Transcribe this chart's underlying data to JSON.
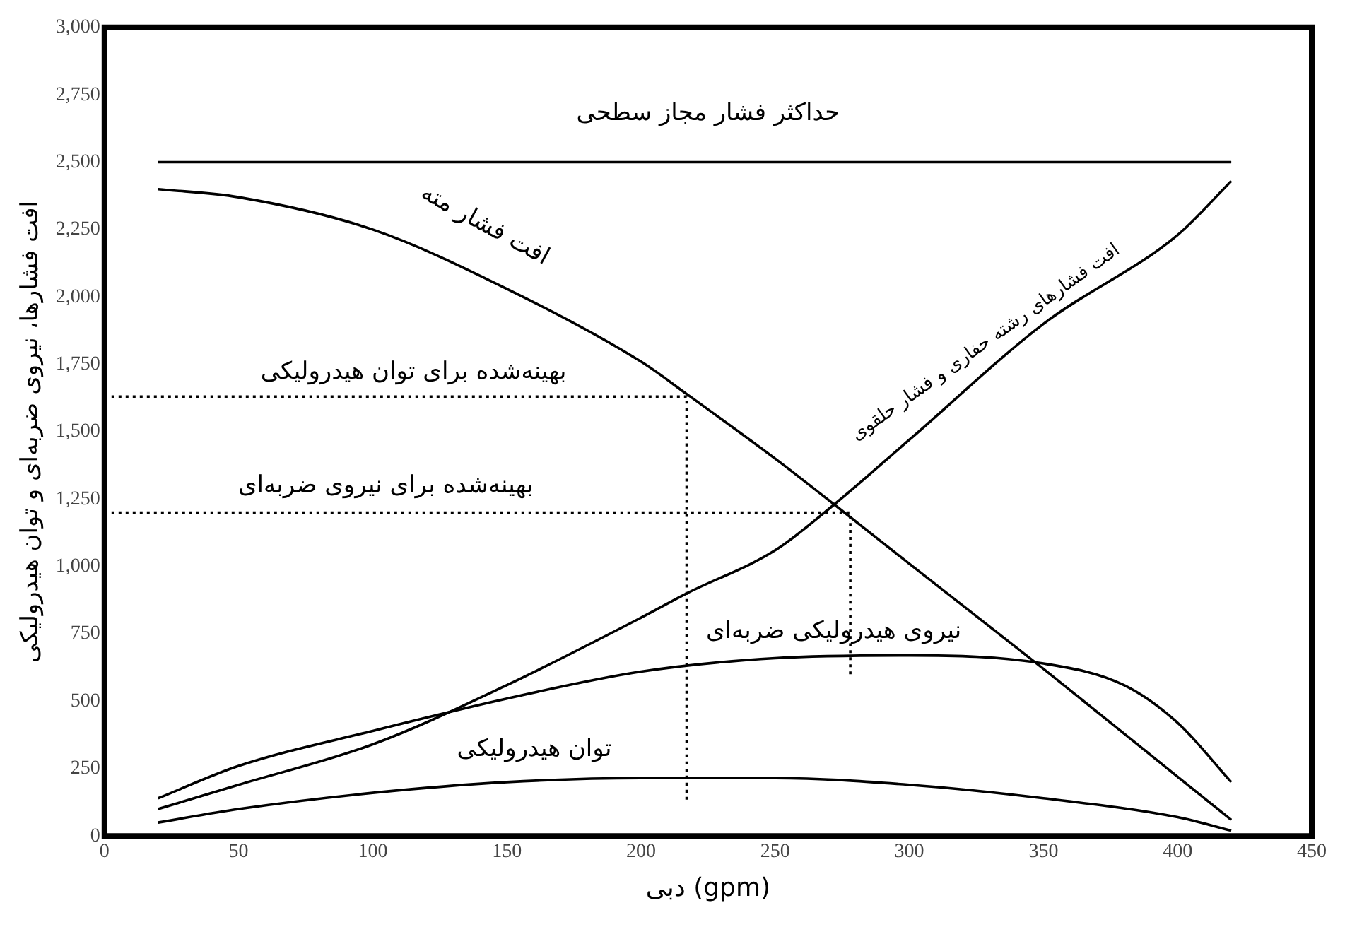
{
  "chart_data": {
    "type": "line",
    "xlabel": "دبی (gpm)",
    "ylabel": "افت فشارها، نیروی ضربه‌ای و توان هیدرولیکی",
    "xlim": [
      0,
      450
    ],
    "xticks": [
      0,
      50,
      100,
      150,
      200,
      250,
      300,
      350,
      400,
      450
    ],
    "ylim": [
      0,
      3000
    ],
    "yticks": [
      0,
      250,
      500,
      750,
      {
        "value": 1000,
        "label": "1,000"
      },
      {
        "value": 1250,
        "label": "1,250"
      },
      {
        "value": 1500,
        "label": "1,500"
      },
      {
        "value": 1750,
        "label": "1,750"
      },
      {
        "value": 2000,
        "label": "2,000"
      },
      {
        "value": 2250,
        "label": "2,250"
      },
      {
        "value": 2500,
        "label": "2,500"
      },
      {
        "value": 2750,
        "label": "2,750"
      },
      {
        "value": 3000,
        "label": "3,000"
      }
    ],
    "grid": false,
    "legend": false,
    "marker": "none",
    "line_style": "solid",
    "series": [
      {
        "color": "#000000",
        "x": [
          20,
          420
        ],
        "values": [
          2500,
          2500
        ]
      },
      {
        "color": "#000000",
        "x": [
          20,
          50,
          100,
          150,
          200,
          217,
          250,
          272,
          300,
          350,
          400,
          420
        ],
        "values": [
          2400,
          2370,
          2250,
          2030,
          1760,
          1640,
          1400,
          1230,
          1010,
          620,
          220,
          60
        ]
      },
      {
        "color": "#000000",
        "x": [
          20,
          50,
          100,
          150,
          200,
          217,
          250,
          272,
          300,
          350,
          400,
          420
        ],
        "values": [
          100,
          190,
          340,
          560,
          810,
          900,
          1060,
          1230,
          1470,
          1900,
          2230,
          2430
        ]
      },
      {
        "color": "#000000",
        "x": [
          20,
          50,
          100,
          150,
          200,
          250,
          300,
          350,
          380,
          400,
          420
        ],
        "values": [
          140,
          260,
          390,
          510,
          610,
          660,
          670,
          640,
          560,
          420,
          200
        ]
      },
      {
        "color": "#000000",
        "x": [
          20,
          50,
          100,
          150,
          200,
          250,
          300,
          350,
          400,
          420
        ],
        "values": [
          50,
          100,
          160,
          200,
          215,
          215,
          190,
          140,
          70,
          20
        ]
      },
      {
        "color": "#000000",
        "line_style": "dotted",
        "x": [
          0,
          217,
          217
        ],
        "values": [
          1630,
          1630,
          130
        ]
      },
      {
        "color": "#000000",
        "line_style": "dotted",
        "x": [
          0,
          278,
          278
        ],
        "values": [
          1200,
          1200,
          600
        ]
      }
    ],
    "annotations": [
      "حداکثر فشار مجاز سطحی",
      "افت فشار مته",
      "افت فشارهای رشته حفاری و فشار حلقوی",
      "بهینه‌شده برای توان هیدرولیکی",
      "بهینه‌شده برای نیروی ضربه‌ای",
      "نیروی هیدرولیکی ضربه‌ای",
      "توان هیدرولیکی"
    ]
  }
}
